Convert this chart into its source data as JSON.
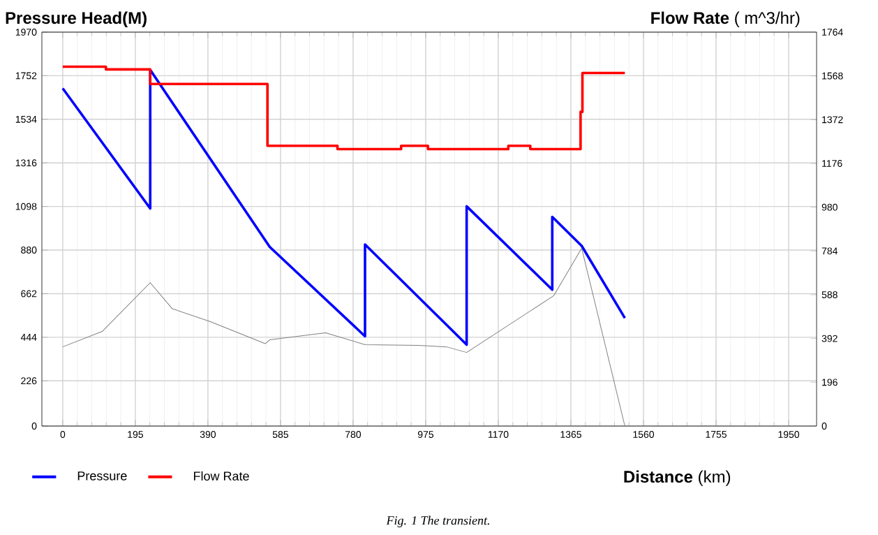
{
  "chart_data": {
    "type": "line",
    "ylabel": "Pressure Head(M)",
    "y2label": "**Flow Rate** ( m^3/hr)",
    "xlabel": "**Distance** (km)",
    "annotations": [
      "Fig. 1  The transient."
    ],
    "xlim": [
      -56,
      2025
    ],
    "xticks": [
      0,
      195,
      390,
      585,
      780,
      975,
      1170,
      1365,
      1560,
      1755,
      1950
    ],
    "ylim": [
      0,
      1970
    ],
    "yticks": [
      0,
      226,
      444,
      662,
      880,
      1098,
      1316,
      1534,
      1752,
      1970
    ],
    "y2lim": [
      0,
      1764
    ],
    "y2ticks": [
      0,
      196,
      392,
      588,
      784,
      980,
      1176,
      1372,
      1568,
      1764
    ],
    "grid": true,
    "legend": "bottom",
    "series": [
      {
        "name": "Pressure",
        "color": "#0000ff",
        "x": [
          0,
          235,
          235,
          556,
          812,
          812,
          1085,
          1085,
          1315,
          1315,
          1394,
          1510
        ],
        "values": [
          1689,
          1088,
          1781,
          896,
          449,
          908,
          407,
          1099,
          682,
          1046,
          901,
          540
        ]
      },
      {
        "name": "Flow Rate",
        "type": "step",
        "axis": "y2",
        "color": "#ff0000",
        "x": [
          0,
          116,
          235,
          550,
          738,
          909,
          981,
          1197,
          1256,
          1391,
          1396,
          1510
        ],
        "values": [
          1609,
          1597,
          1532,
          1255,
          1240,
          1255,
          1240,
          1255,
          1240,
          1407,
          1581,
          1581
        ]
      },
      {
        "color": "#808080",
        "x": [
          0,
          106,
          235,
          294,
          394,
          544,
          556,
          706,
          812,
          956,
          1031,
          1085,
          1319,
          1394,
          1510
        ],
        "values": [
          396,
          473,
          717,
          587,
          524,
          412,
          431,
          466,
          407,
          403,
          396,
          368,
          652,
          889,
          0
        ]
      }
    ]
  }
}
